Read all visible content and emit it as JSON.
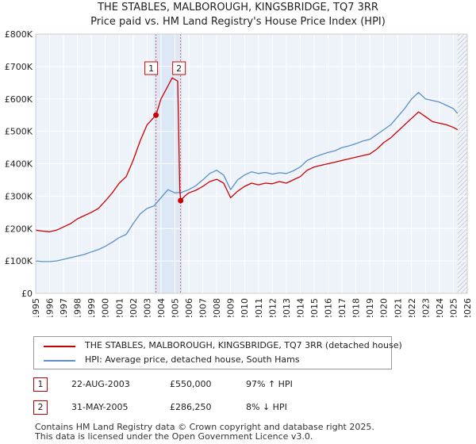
{
  "chart_data": {
    "type": "line",
    "title": "THE STABLES, MALBOROUGH, KINGSBRIDGE, TQ7 3RR",
    "subtitle": "Price paid vs. HM Land Registry's House Price Index (HPI)",
    "ylim": [
      0,
      800000
    ],
    "xlim": [
      1995,
      2026
    ],
    "y_ticks": [
      0,
      100000,
      200000,
      300000,
      400000,
      500000,
      600000,
      700000,
      800000
    ],
    "y_tick_labels": [
      "£0",
      "£100K",
      "£200K",
      "£300K",
      "£400K",
      "£500K",
      "£600K",
      "£700K",
      "£800K"
    ],
    "x_tick_labels": [
      "1995",
      "1996",
      "1997",
      "1998",
      "1999",
      "2000",
      "2001",
      "2002",
      "2003",
      "2004",
      "2005",
      "2006",
      "2007",
      "2008",
      "2009",
      "2010",
      "2011",
      "2012",
      "2013",
      "2014",
      "2015",
      "2016",
      "2017",
      "2018",
      "2019",
      "2020",
      "2021",
      "2022",
      "2023",
      "2024",
      "2025",
      "2026"
    ],
    "grid": true,
    "series": [
      {
        "name": "THE STABLES, MALBOROUGH, KINGSBRIDGE, TQ7 3RR (detached house)",
        "color": "#cc0000",
        "points": [
          [
            1995.0,
            195000
          ],
          [
            1995.5,
            192000
          ],
          [
            1996.0,
            190000
          ],
          [
            1996.5,
            195000
          ],
          [
            1997.0,
            205000
          ],
          [
            1997.5,
            215000
          ],
          [
            1998.0,
            230000
          ],
          [
            1998.5,
            240000
          ],
          [
            1999.0,
            250000
          ],
          [
            1999.5,
            262000
          ],
          [
            2000.0,
            285000
          ],
          [
            2000.5,
            310000
          ],
          [
            2001.0,
            340000
          ],
          [
            2001.5,
            360000
          ],
          [
            2002.0,
            410000
          ],
          [
            2002.5,
            470000
          ],
          [
            2003.0,
            520000
          ],
          [
            2003.64,
            550000
          ],
          [
            2004.0,
            600000
          ],
          [
            2004.5,
            640000
          ],
          [
            2004.8,
            665000
          ],
          [
            2005.2,
            655000
          ],
          [
            2005.35,
            320000
          ],
          [
            2005.41,
            286250
          ],
          [
            2005.7,
            300000
          ],
          [
            2006.0,
            310000
          ],
          [
            2006.5,
            318000
          ],
          [
            2007.0,
            330000
          ],
          [
            2007.5,
            345000
          ],
          [
            2008.0,
            352000
          ],
          [
            2008.5,
            340000
          ],
          [
            2009.0,
            295000
          ],
          [
            2009.5,
            315000
          ],
          [
            2010.0,
            330000
          ],
          [
            2010.5,
            340000
          ],
          [
            2011.0,
            335000
          ],
          [
            2011.5,
            340000
          ],
          [
            2012.0,
            338000
          ],
          [
            2012.5,
            345000
          ],
          [
            2013.0,
            340000
          ],
          [
            2013.5,
            350000
          ],
          [
            2014.0,
            360000
          ],
          [
            2014.5,
            380000
          ],
          [
            2015.0,
            390000
          ],
          [
            2015.5,
            395000
          ],
          [
            2016.0,
            400000
          ],
          [
            2016.5,
            405000
          ],
          [
            2017.0,
            410000
          ],
          [
            2017.5,
            415000
          ],
          [
            2018.0,
            420000
          ],
          [
            2018.5,
            425000
          ],
          [
            2019.0,
            430000
          ],
          [
            2019.5,
            445000
          ],
          [
            2020.0,
            465000
          ],
          [
            2020.5,
            480000
          ],
          [
            2021.0,
            500000
          ],
          [
            2021.5,
            520000
          ],
          [
            2022.0,
            540000
          ],
          [
            2022.5,
            560000
          ],
          [
            2023.0,
            545000
          ],
          [
            2023.5,
            530000
          ],
          [
            2024.0,
            525000
          ],
          [
            2024.5,
            520000
          ],
          [
            2025.0,
            512000
          ],
          [
            2025.3,
            505000
          ]
        ]
      },
      {
        "name": "HPI: Average price, detached house, South Hams",
        "color": "#5b8fc9",
        "points": [
          [
            1995.0,
            100000
          ],
          [
            1995.5,
            98000
          ],
          [
            1996.0,
            98000
          ],
          [
            1996.5,
            100000
          ],
          [
            1997.0,
            105000
          ],
          [
            1997.5,
            110000
          ],
          [
            1998.0,
            115000
          ],
          [
            1998.5,
            120000
          ],
          [
            1999.0,
            128000
          ],
          [
            1999.5,
            135000
          ],
          [
            2000.0,
            145000
          ],
          [
            2000.5,
            158000
          ],
          [
            2001.0,
            172000
          ],
          [
            2001.5,
            182000
          ],
          [
            2002.0,
            215000
          ],
          [
            2002.5,
            245000
          ],
          [
            2003.0,
            262000
          ],
          [
            2003.5,
            270000
          ],
          [
            2004.0,
            295000
          ],
          [
            2004.5,
            320000
          ],
          [
            2005.0,
            310000
          ],
          [
            2005.5,
            312000
          ],
          [
            2006.0,
            320000
          ],
          [
            2006.5,
            332000
          ],
          [
            2007.0,
            350000
          ],
          [
            2007.5,
            370000
          ],
          [
            2008.0,
            380000
          ],
          [
            2008.5,
            365000
          ],
          [
            2009.0,
            320000
          ],
          [
            2009.5,
            350000
          ],
          [
            2010.0,
            365000
          ],
          [
            2010.5,
            375000
          ],
          [
            2011.0,
            370000
          ],
          [
            2011.5,
            373000
          ],
          [
            2012.0,
            368000
          ],
          [
            2012.5,
            372000
          ],
          [
            2013.0,
            370000
          ],
          [
            2013.5,
            378000
          ],
          [
            2014.0,
            390000
          ],
          [
            2014.5,
            410000
          ],
          [
            2015.0,
            420000
          ],
          [
            2015.5,
            428000
          ],
          [
            2016.0,
            435000
          ],
          [
            2016.5,
            440000
          ],
          [
            2017.0,
            450000
          ],
          [
            2017.5,
            455000
          ],
          [
            2018.0,
            462000
          ],
          [
            2018.5,
            470000
          ],
          [
            2019.0,
            475000
          ],
          [
            2019.5,
            490000
          ],
          [
            2020.0,
            505000
          ],
          [
            2020.5,
            520000
          ],
          [
            2021.0,
            545000
          ],
          [
            2021.5,
            570000
          ],
          [
            2022.0,
            600000
          ],
          [
            2022.5,
            620000
          ],
          [
            2023.0,
            600000
          ],
          [
            2023.5,
            595000
          ],
          [
            2024.0,
            590000
          ],
          [
            2024.5,
            580000
          ],
          [
            2025.0,
            570000
          ],
          [
            2025.3,
            555000
          ]
        ]
      }
    ],
    "sales": [
      {
        "marker": "1",
        "date": "22-AUG-2003",
        "x": 2003.64,
        "price": 550000,
        "price_label": "£550,000",
        "hpi_label": "97% ↑ HPI"
      },
      {
        "marker": "2",
        "date": "31-MAY-2005",
        "x": 2005.41,
        "price": 286250,
        "price_label": "£286,250",
        "hpi_label": "8% ↓ HPI"
      }
    ],
    "shaded_period": [
      2003.5,
      2005.5
    ],
    "projection_start": 2025.3
  },
  "footer": {
    "line1": "Contains HM Land Registry data © Crown copyright and database right 2025.",
    "line2": "This data is licensed under the Open Government Licence v3.0."
  }
}
